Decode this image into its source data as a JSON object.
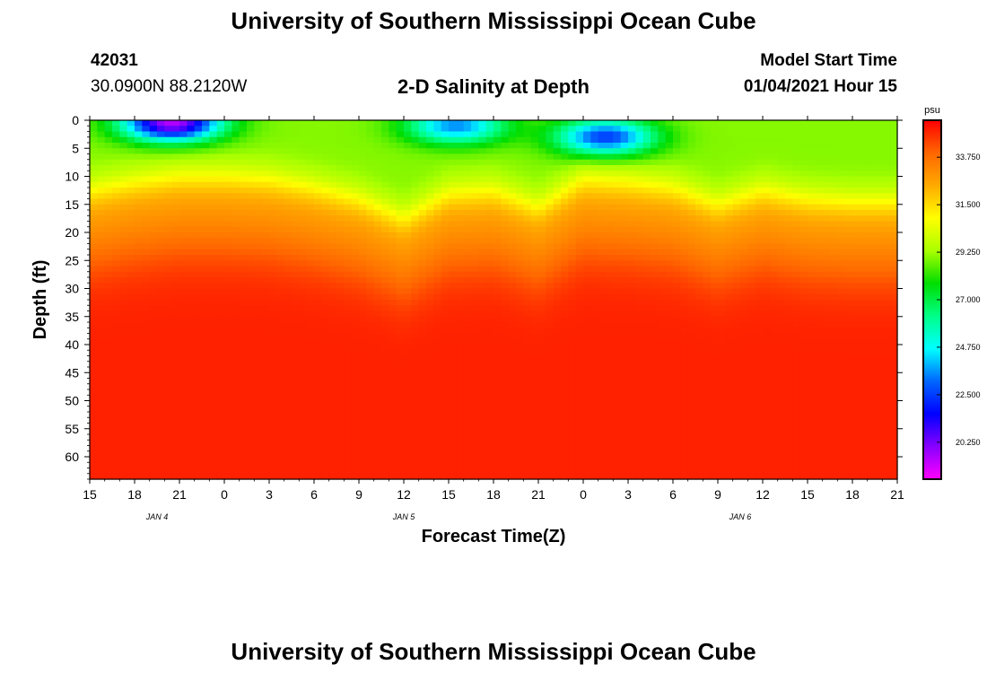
{
  "page": {
    "title_top": "University of Southern Mississippi Ocean Cube",
    "title_bottom": "University of Southern Mississippi Ocean Cube"
  },
  "header": {
    "station_id": "42031",
    "location": "30.0900N 88.2120W",
    "chart_title": "2-D Salinity at Depth",
    "model_start_label": "Model Start Time",
    "model_start_value": "01/04/2021 Hour 15"
  },
  "chart_data": {
    "type": "heatmap",
    "title": "2-D Salinity at Depth",
    "xlabel": "Forecast Time(Z)",
    "ylabel": "Depth (ft)",
    "x_ticks": [
      "15",
      "18",
      "21",
      "0",
      "3",
      "6",
      "9",
      "12",
      "15",
      "18",
      "21",
      "0",
      "3",
      "6",
      "9",
      "12",
      "15",
      "18",
      "21"
    ],
    "x_range_hours": [
      0,
      54
    ],
    "date_labels": [
      {
        "label": "JAN 4",
        "hour": 4.5
      },
      {
        "label": "JAN 5",
        "hour": 21
      },
      {
        "label": "JAN 6",
        "hour": 43.5
      }
    ],
    "y_ticks": [
      0,
      5,
      10,
      15,
      20,
      25,
      30,
      35,
      40,
      45,
      50,
      55,
      60
    ],
    "ylim": [
      0,
      64
    ],
    "y_inverted": true,
    "colorbar": {
      "unit": "psu",
      "tick_values": [
        "33.750",
        "31.500",
        "29.250",
        "27.000",
        "24.750",
        "22.500",
        "20.250"
      ],
      "range": [
        18.5,
        35.5
      ],
      "colors": [
        "#ff00ff",
        "#8800ff",
        "#0000ff",
        "#0066ff",
        "#00ffff",
        "#00ff88",
        "#00dd00",
        "#aaff00",
        "#ffff00",
        "#ffaa00",
        "#ff6600",
        "#ff0000"
      ]
    },
    "surface_layer_depth_ft": [
      12.5,
      11.0,
      10.0,
      10.0,
      10.5,
      12.0,
      14.0,
      17.5,
      13.0,
      12.5,
      15.5,
      10.5,
      11.0,
      12.0,
      15.0,
      12.5,
      14.0,
      14.5,
      14.5
    ],
    "fresh_cores": [
      {
        "hour": 5.5,
        "depth_ft": 0.5,
        "salinity": 19.5
      },
      {
        "hour": 24.5,
        "depth_ft": 1.0,
        "salinity": 23.5
      },
      {
        "hour": 34.5,
        "depth_ft": 3.0,
        "salinity": 22.5
      }
    ],
    "deep_salinity": 35.0
  }
}
